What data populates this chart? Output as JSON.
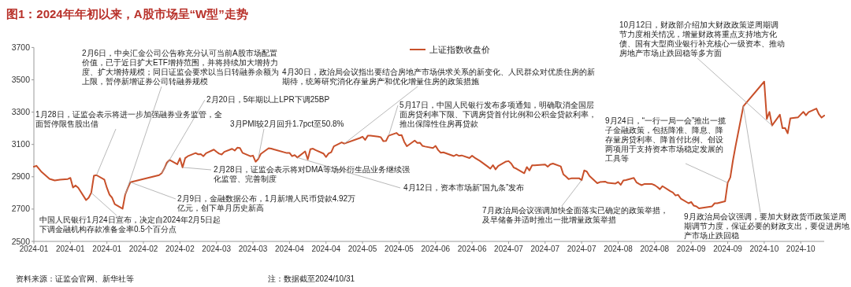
{
  "chart_data": {
    "type": "line",
    "title": "图1：2024年年初以来，A股市场呈“W型”走势",
    "x": [
      "2024-01-02",
      "2024-01-03",
      "2024-01-05",
      "2024-01-08",
      "2024-01-10",
      "2024-01-12",
      "2024-01-15",
      "2024-01-16",
      "2024-01-17",
      "2024-01-18",
      "2024-01-19",
      "2024-01-22",
      "2024-01-23",
      "2024-01-24",
      "2024-01-25",
      "2024-01-26",
      "2024-01-29",
      "2024-01-30",
      "2024-01-31",
      "2024-02-01",
      "2024-02-02",
      "2024-02-05",
      "2024-02-06",
      "2024-02-07",
      "2024-02-08",
      "2024-02-19",
      "2024-02-20",
      "2024-02-21",
      "2024-02-22",
      "2024-02-23",
      "2024-02-26",
      "2024-02-27",
      "2024-02-28",
      "2024-02-29",
      "2024-03-01",
      "2024-03-04",
      "2024-03-05",
      "2024-03-06",
      "2024-03-07",
      "2024-03-08",
      "2024-03-11",
      "2024-03-12",
      "2024-03-13",
      "2024-03-14",
      "2024-03-15",
      "2024-03-18",
      "2024-03-19",
      "2024-03-20",
      "2024-03-21",
      "2024-03-22",
      "2024-03-25",
      "2024-03-26",
      "2024-03-27",
      "2024-03-28",
      "2024-03-29",
      "2024-04-01",
      "2024-04-02",
      "2024-04-03",
      "2024-04-08",
      "2024-04-09",
      "2024-04-10",
      "2024-04-11",
      "2024-04-12",
      "2024-04-15",
      "2024-04-16",
      "2024-04-17",
      "2024-04-18",
      "2024-04-19",
      "2024-04-22",
      "2024-04-23",
      "2024-04-24",
      "2024-04-25",
      "2024-04-26",
      "2024-04-29",
      "2024-04-30",
      "2024-05-06",
      "2024-05-07",
      "2024-05-08",
      "2024-05-09",
      "2024-05-10",
      "2024-05-13",
      "2024-05-14",
      "2024-05-15",
      "2024-05-16",
      "2024-05-17",
      "2024-05-20",
      "2024-05-21",
      "2024-05-22",
      "2024-05-23",
      "2024-05-24",
      "2024-05-27",
      "2024-05-28",
      "2024-05-29",
      "2024-05-30",
      "2024-05-31",
      "2024-06-03",
      "2024-06-04",
      "2024-06-05",
      "2024-06-06",
      "2024-06-07",
      "2024-06-11",
      "2024-06-12",
      "2024-06-13",
      "2024-06-14",
      "2024-06-17",
      "2024-06-18",
      "2024-06-19",
      "2024-06-20",
      "2024-06-21",
      "2024-06-24",
      "2024-06-25",
      "2024-06-26",
      "2024-06-27",
      "2024-06-28",
      "2024-07-01",
      "2024-07-02",
      "2024-07-03",
      "2024-07-04",
      "2024-07-05",
      "2024-07-08",
      "2024-07-09",
      "2024-07-10",
      "2024-07-11",
      "2024-07-12",
      "2024-07-15",
      "2024-07-16",
      "2024-07-17",
      "2024-07-18",
      "2024-07-19",
      "2024-07-22",
      "2024-07-23",
      "2024-07-24",
      "2024-07-25",
      "2024-07-26",
      "2024-07-29",
      "2024-07-30",
      "2024-07-31",
      "2024-08-01",
      "2024-08-02",
      "2024-08-05",
      "2024-08-06",
      "2024-08-07",
      "2024-08-08",
      "2024-08-09",
      "2024-08-12",
      "2024-08-13",
      "2024-08-14",
      "2024-08-15",
      "2024-08-16",
      "2024-08-19",
      "2024-08-20",
      "2024-08-21",
      "2024-08-22",
      "2024-08-23",
      "2024-08-26",
      "2024-08-27",
      "2024-08-28",
      "2024-08-29",
      "2024-08-30",
      "2024-09-02",
      "2024-09-03",
      "2024-09-04",
      "2024-09-05",
      "2024-09-06",
      "2024-09-09",
      "2024-09-10",
      "2024-09-11",
      "2024-09-12",
      "2024-09-13",
      "2024-09-18",
      "2024-09-19",
      "2024-09-20",
      "2024-09-23",
      "2024-09-24",
      "2024-09-25",
      "2024-09-26",
      "2024-09-27",
      "2024-09-30",
      "2024-10-08",
      "2024-10-09",
      "2024-10-10",
      "2024-10-11",
      "2024-10-14",
      "2024-10-15",
      "2024-10-16",
      "2024-10-17",
      "2024-10-18",
      "2024-10-21",
      "2024-10-22",
      "2024-10-23",
      "2024-10-24",
      "2024-10-25",
      "2024-10-28",
      "2024-10-29",
      "2024-10-30",
      "2024-10-31"
    ],
    "series": [
      {
        "name": "上证指数收盘价",
        "color": "#c8502a",
        "values": [
          2962,
          2968,
          2929,
          2887,
          2877,
          2882,
          2886,
          2893,
          2833,
          2846,
          2832,
          2756,
          2770,
          2801,
          2906,
          2910,
          2883,
          2831,
          2789,
          2770,
          2730,
          2702,
          2789,
          2830,
          2866,
          2910,
          2922,
          2951,
          2988,
          3004,
          2977,
          3015,
          2958,
          3015,
          3027,
          3047,
          3039,
          3040,
          3027,
          3046,
          3068,
          3055,
          3043,
          3038,
          3054,
          3073,
          3062,
          3080,
          3078,
          3048,
          3027,
          3031,
          2993,
          3010,
          3041,
          3077,
          3074,
          3069,
          3047,
          3048,
          3027,
          3034,
          3019,
          3057,
          3007,
          3071,
          3074,
          3065,
          3044,
          3022,
          3044,
          3052,
          3088,
          3113,
          3105,
          3140,
          3148,
          3128,
          3154,
          3154,
          3148,
          3145,
          3120,
          3122,
          3154,
          3171,
          3157,
          3158,
          3116,
          3089,
          3124,
          3110,
          3111,
          3091,
          3087,
          3078,
          3091,
          3065,
          3049,
          3051,
          3028,
          3037,
          3029,
          3032,
          3016,
          3030,
          3018,
          3008,
          2998,
          2963,
          2950,
          2972,
          2946,
          2967,
          2994,
          2997,
          2982,
          2957,
          2950,
          2922,
          2960,
          2939,
          2971,
          2971,
          2975,
          2976,
          2962,
          2977,
          2982,
          2964,
          2915,
          2901,
          2886,
          2890,
          2891,
          2879,
          2939,
          2932,
          2905,
          2860,
          2867,
          2869,
          2870,
          2862,
          2858,
          2868,
          2850,
          2877,
          2880,
          2893,
          2866,
          2856,
          2848,
          2855,
          2855,
          2848,
          2837,
          2823,
          2842,
          2811,
          2802,
          2784,
          2788,
          2765,
          2736,
          2744,
          2721,
          2717,
          2704,
          2717,
          2736,
          2736,
          2748,
          2863,
          2896,
          3000,
          3088,
          3336,
          3489,
          3258,
          3301,
          3217,
          3284,
          3201,
          3202,
          3169,
          3261,
          3268,
          3285,
          3302,
          3280,
          3300,
          3322,
          3286,
          3266,
          3279
        ]
      }
    ],
    "xlim": [
      "2024-01-02",
      "2024-10-31"
    ],
    "xticks": [
      {
        "value": "2024-01-02",
        "label": "2024-01"
      },
      {
        "value": "2024-01-16",
        "label": "2024-01"
      },
      {
        "value": "2024-01-30",
        "label": "2024-01"
      },
      {
        "value": "2024-02-13",
        "label": "2024-02"
      },
      {
        "value": "2024-02-27",
        "label": "2024-02"
      },
      {
        "value": "2024-03-12",
        "label": "2024-03"
      },
      {
        "value": "2024-03-26",
        "label": "2024-03"
      },
      {
        "value": "2024-04-09",
        "label": "2024-04"
      },
      {
        "value": "2024-04-23",
        "label": "2024-04"
      },
      {
        "value": "2024-05-07",
        "label": "2024-05"
      },
      {
        "value": "2024-05-21",
        "label": "2024-05"
      },
      {
        "value": "2024-06-04",
        "label": "2024-06"
      },
      {
        "value": "2024-06-18",
        "label": "2024-06"
      },
      {
        "value": "2024-07-02",
        "label": "2024-07"
      },
      {
        "value": "2024-07-16",
        "label": "2024-07"
      },
      {
        "value": "2024-07-30",
        "label": "2024-07"
      },
      {
        "value": "2024-08-13",
        "label": "2024-08"
      },
      {
        "value": "2024-08-27",
        "label": "2024-08"
      },
      {
        "value": "2024-09-10",
        "label": "2024-09"
      },
      {
        "value": "2024-09-24",
        "label": "2024-09"
      },
      {
        "value": "2024-10-08",
        "label": "2024-10"
      },
      {
        "value": "2024-10-22",
        "label": "2024-10"
      }
    ],
    "ylim": [
      2500,
      3700
    ],
    "yticks": [
      2500,
      2700,
      2900,
      3100,
      3300,
      3500,
      3700
    ],
    "legend": "top",
    "annotations": [
      {
        "text": "1月28日，证监会表示将进一步加强融券业务监管，全面暂停限售股出借",
        "x": "2024-01-26",
        "y": 2910
      },
      {
        "text": "中国人民银行1月24日宣布，决定自2024年2月5日起下调金融机构存款准备金率0.5个百分点",
        "x": "2024-01-24",
        "y": 2801
      },
      {
        "text": "2月6日，中央汇金公司公告称充分认可当前A股市场配置价值，已于近日扩大ETF增持范围，并将持续加大增持力度、扩大增持规模；同日证监会要求以当日转融券余额为上限，暂停新增证券公司转融券规模",
        "x": "2024-02-06",
        "y": 2789
      },
      {
        "text": "2月20日，5年期以上LPR下调25BP",
        "x": "2024-02-20",
        "y": 2922
      },
      {
        "text": "3月PMI较2月回升1.7pct至50.8%",
        "x": "2024-03-28",
        "y": 3010
      },
      {
        "text": "2月28日，证监会表示将对DMA等场外衍生品业务继续强化监管、完善制度",
        "x": "2024-02-28",
        "y": 2958
      },
      {
        "text": "2月9日，金融数据公布，1月新增人民币贷款4.92万亿元，创下单月历史新高",
        "x": "2024-02-08",
        "y": 2866
      },
      {
        "text": "4月30日，政治局会议指出要结合房地产市场供求关系的新变化、人民群众对优质住房的新期待，统筹研究消化存量房产和优化增量住房的政策措施",
        "x": "2024-04-30",
        "y": 3105
      },
      {
        "text": "4月12日，资本市场新“国九条”发布",
        "x": "2024-04-12",
        "y": 3019
      },
      {
        "text": "5月17日，中国人民银行发布多项通知，明确取消全国层面房贷利率下限、下调房贷首付比例和公积金贷款利率，推出保障性住房再贷款",
        "x": "2024-05-17",
        "y": 3154
      },
      {
        "text": "7月政治局会议强调加快全面落实已确定的政策举措，及早储备并适时推出一批增量政策举措",
        "x": "2024-07-30",
        "y": 2879
      },
      {
        "text": "9月24日，“一行一局一会”推出一揽子金融政策，包括降准、降息、降存量房贷利率、降首付比例、创设两项用于支持资本市场稳定发展的工具等",
        "x": "2024-09-24",
        "y": 2863
      },
      {
        "text": "9月政治局会议强调，要加大财政货币政策逆周期调节力度，保证必要的财政支出，要促进房地产市场止跌回稳",
        "x": "2024-09-30",
        "y": 3336
      },
      {
        "text": "10月12日，财政部介绍加大财政政策逆周期调节力度相关情况，增量财政将重点支持地方化债、国有大型商业银行补充核心一级资本、推动房地产市场止跌回稳等多方面",
        "x": "2024-10-11",
        "y": 3217
      },
      "资料来源：证监会官网、新华社等",
      "注：数据截至2024/10/31"
    ]
  }
}
